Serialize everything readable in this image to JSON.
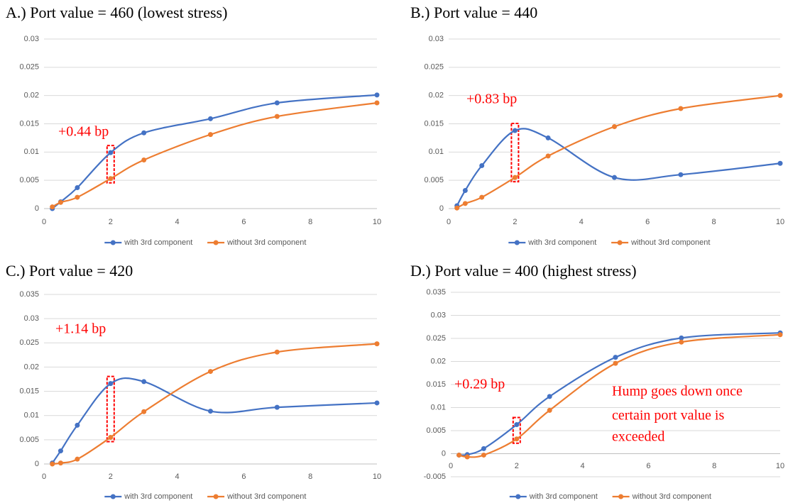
{
  "chart_data": [
    {
      "type": "line",
      "title": "A.) Port value = 460 (lowest stress)",
      "x": [
        0.25,
        0.5,
        1,
        2,
        3,
        5,
        7,
        10
      ],
      "series": [
        {
          "name": "with 3rd component",
          "color": "#4472c4",
          "values": [
            0,
            0.0012,
            0.0037,
            0.0099,
            0.0134,
            0.0159,
            0.0187,
            0.0201
          ]
        },
        {
          "name": "without 3rd component",
          "color": "#ed7d31",
          "values": [
            0.0003,
            0.0011,
            0.002,
            0.0053,
            0.0086,
            0.0131,
            0.0163,
            0.0187
          ]
        }
      ],
      "xlim": [
        0,
        10
      ],
      "xticks": [
        0,
        2,
        4,
        6,
        8,
        10
      ],
      "ylim": [
        0,
        0.03
      ],
      "yticks": [
        0,
        0.005,
        0.01,
        0.015,
        0.02,
        0.025,
        0.03
      ],
      "grid": true,
      "annotations": [
        "+0.44 bp"
      ]
    },
    {
      "type": "line",
      "title": "B.) Port value = 440",
      "x": [
        0.25,
        0.5,
        1,
        2,
        3,
        5,
        7,
        10
      ],
      "series": [
        {
          "name": "with 3rd component",
          "color": "#4472c4",
          "values": [
            0.0005,
            0.0032,
            0.0076,
            0.0138,
            0.0125,
            0.0055,
            0.006,
            0.008
          ]
        },
        {
          "name": "without 3rd component",
          "color": "#ed7d31",
          "values": [
            0.0001,
            0.0009,
            0.002,
            0.0055,
            0.0093,
            0.0145,
            0.0177,
            0.02
          ]
        }
      ],
      "xlim": [
        0,
        10
      ],
      "xticks": [
        0,
        2,
        4,
        6,
        8,
        10
      ],
      "ylim": [
        0,
        0.03
      ],
      "yticks": [
        0,
        0.005,
        0.01,
        0.015,
        0.02,
        0.025,
        0.03
      ],
      "grid": true,
      "annotations": [
        "+0.83 bp"
      ]
    },
    {
      "type": "line",
      "title": "C.) Port value = 420",
      "x": [
        0.25,
        0.5,
        1,
        2,
        3,
        5,
        7,
        10
      ],
      "series": [
        {
          "name": "with 3rd component",
          "color": "#4472c4",
          "values": [
            0.0002,
            0.0027,
            0.008,
            0.0166,
            0.017,
            0.0109,
            0.0117,
            0.0126
          ]
        },
        {
          "name": "without 3rd component",
          "color": "#ed7d31",
          "values": [
            0,
            0.0002,
            0.001,
            0.0055,
            0.0108,
            0.0191,
            0.0231,
            0.0248
          ]
        }
      ],
      "xlim": [
        0,
        10
      ],
      "xticks": [
        0,
        2,
        4,
        6,
        8,
        10
      ],
      "ylim": [
        0,
        0.035
      ],
      "yticks": [
        0,
        0.005,
        0.01,
        0.015,
        0.02,
        0.025,
        0.03,
        0.035
      ],
      "grid": true,
      "annotations": [
        "+1.14 bp"
      ]
    },
    {
      "type": "line",
      "title": "D.) Port value = 400 (highest stress)",
      "x": [
        0.25,
        0.5,
        1,
        2,
        3,
        5,
        7,
        10
      ],
      "series": [
        {
          "name": "with 3rd component",
          "color": "#4472c4",
          "values": [
            -0.0003,
            -0.0002,
            0.0011,
            0.0063,
            0.0124,
            0.0209,
            0.0251,
            0.0262
          ]
        },
        {
          "name": "without 3rd component",
          "color": "#ed7d31",
          "values": [
            -0.0003,
            -0.0007,
            -0.0003,
            0.0032,
            0.0094,
            0.0196,
            0.0242,
            0.0258
          ]
        }
      ],
      "xlim": [
        0,
        10
      ],
      "xticks": [
        0,
        2,
        4,
        6,
        8,
        10
      ],
      "ylim": [
        -0.005,
        0.035
      ],
      "yticks": [
        -0.005,
        0,
        0.005,
        0.01,
        0.015,
        0.02,
        0.025,
        0.03,
        0.035
      ],
      "grid": true,
      "annotations": [
        "+0.29 bp",
        "Hump goes down once",
        "certain port value is",
        "exceeded"
      ]
    }
  ]
}
